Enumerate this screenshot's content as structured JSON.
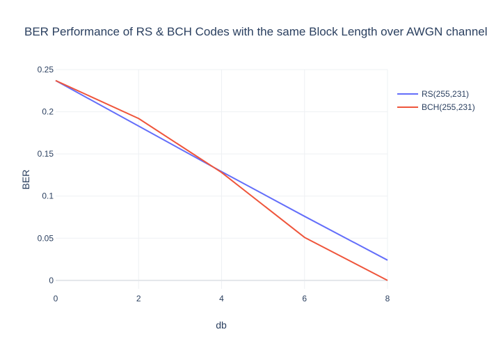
{
  "chart_data": {
    "type": "line",
    "title": "BER Performance of RS & BCH Codes with the same Block Length over AWGN channel",
    "xlabel": "db",
    "ylabel": "BER",
    "x": [
      0,
      2,
      4,
      6,
      8
    ],
    "xlim": [
      0,
      8
    ],
    "ylim": [
      -0.01,
      0.25
    ],
    "xticks": [
      0,
      2,
      4,
      6,
      8
    ],
    "yticks": [
      0,
      0.05,
      0.1,
      0.15,
      0.2,
      0.25
    ],
    "xtick_labels": [
      "0",
      "2",
      "4",
      "6",
      "8"
    ],
    "ytick_labels": [
      "0",
      "0.05",
      "0.1",
      "0.15",
      "0.2",
      "0.25"
    ],
    "grid": true,
    "legend_position": "top-right",
    "series": [
      {
        "name": "RS(255,231)",
        "color": "#636efa",
        "values": [
          0.237,
          0.183,
          0.129,
          0.076,
          0.024
        ]
      },
      {
        "name": "BCH(255,231)",
        "color": "#ef553b",
        "values": [
          0.237,
          0.192,
          0.128,
          0.051,
          0.0
        ]
      }
    ]
  }
}
